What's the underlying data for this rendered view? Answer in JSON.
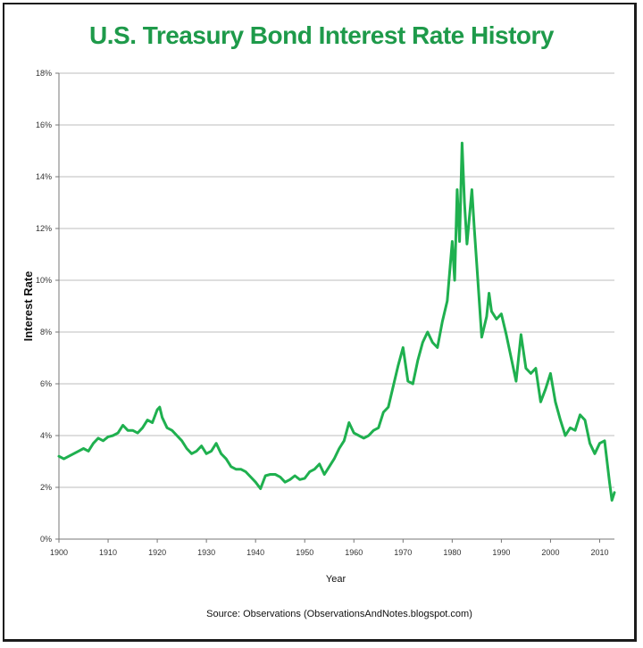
{
  "chart_data": {
    "type": "line",
    "title": "U.S. Treasury Bond Interest Rate History",
    "xlabel": "Year",
    "ylabel": "Interest Rate",
    "xlim": [
      1900,
      2013
    ],
    "ylim": [
      0,
      18
    ],
    "x_ticks": [
      "1900",
      "1910",
      "1920",
      "1930",
      "1940",
      "1950",
      "1960",
      "1970",
      "1980",
      "1990",
      "2000",
      "2010"
    ],
    "x_tick_values": [
      1900,
      1910,
      1920,
      1930,
      1940,
      1950,
      1960,
      1970,
      1980,
      1990,
      2000,
      2010
    ],
    "y_ticks": [
      "0%",
      "2%",
      "4%",
      "6%",
      "8%",
      "10%",
      "12%",
      "14%",
      "16%",
      "18%"
    ],
    "y_tick_values": [
      0,
      2,
      4,
      6,
      8,
      10,
      12,
      14,
      16,
      18
    ],
    "grid": "horizontal",
    "legend": "none",
    "line_color": "#1fb04f",
    "series": [
      {
        "name": "Interest Rate",
        "x": [
          1900,
          1901,
          1902,
          1903,
          1904,
          1905,
          1906,
          1907,
          1908,
          1909,
          1910,
          1911,
          1912,
          1913,
          1914,
          1915,
          1916,
          1917,
          1918,
          1919,
          1920,
          1920.5,
          1921,
          1922,
          1923,
          1924,
          1925,
          1926,
          1927,
          1928,
          1929,
          1930,
          1931,
          1932,
          1933,
          1934,
          1935,
          1936,
          1937,
          1938,
          1939,
          1940,
          1941,
          1942,
          1943,
          1944,
          1945,
          1946,
          1947,
          1948,
          1949,
          1950,
          1951,
          1952,
          1953,
          1954,
          1955,
          1956,
          1957,
          1958,
          1959,
          1960,
          1961,
          1962,
          1963,
          1964,
          1965,
          1966,
          1967,
          1968,
          1969,
          1970,
          1971,
          1972,
          1973,
          1974,
          1975,
          1976,
          1977,
          1978,
          1979,
          1980,
          1980.5,
          1981,
          1981.5,
          1982,
          1982.5,
          1983,
          1984,
          1984.5,
          1985,
          1986,
          1987,
          1987.5,
          1988,
          1989,
          1990,
          1991,
          1992,
          1993,
          1994,
          1995,
          1996,
          1997,
          1998,
          1999,
          2000,
          2001,
          2002,
          2003,
          2004,
          2005,
          2006,
          2007,
          2008,
          2009,
          2010,
          2011,
          2012,
          2012.5,
          2013
        ],
        "values": [
          3.2,
          3.1,
          3.2,
          3.3,
          3.4,
          3.5,
          3.4,
          3.7,
          3.9,
          3.8,
          3.95,
          4.0,
          4.1,
          4.4,
          4.2,
          4.2,
          4.1,
          4.3,
          4.6,
          4.5,
          5.0,
          5.1,
          4.7,
          4.3,
          4.2,
          4.0,
          3.8,
          3.5,
          3.3,
          3.4,
          3.6,
          3.3,
          3.4,
          3.7,
          3.3,
          3.1,
          2.8,
          2.7,
          2.7,
          2.6,
          2.4,
          2.2,
          1.95,
          2.45,
          2.5,
          2.5,
          2.4,
          2.2,
          2.3,
          2.45,
          2.3,
          2.35,
          2.6,
          2.7,
          2.9,
          2.5,
          2.8,
          3.1,
          3.5,
          3.8,
          4.5,
          4.1,
          4.0,
          3.9,
          4.0,
          4.2,
          4.3,
          4.9,
          5.1,
          5.9,
          6.7,
          7.4,
          6.1,
          6.0,
          6.9,
          7.6,
          8.0,
          7.6,
          7.4,
          8.4,
          9.2,
          11.5,
          10.0,
          13.5,
          11.5,
          15.3,
          13.0,
          11.4,
          13.5,
          12.0,
          10.6,
          7.8,
          8.6,
          9.5,
          8.8,
          8.5,
          8.7,
          7.9,
          7.0,
          6.1,
          7.9,
          6.6,
          6.4,
          6.6,
          5.3,
          5.8,
          6.4,
          5.3,
          4.6,
          4.0,
          4.3,
          4.2,
          4.8,
          4.6,
          3.7,
          3.3,
          3.7,
          3.8,
          2.2,
          1.5,
          1.8
        ]
      }
    ],
    "source": "Source: Observations   (ObservationsAndNotes.blogspot.com)"
  }
}
